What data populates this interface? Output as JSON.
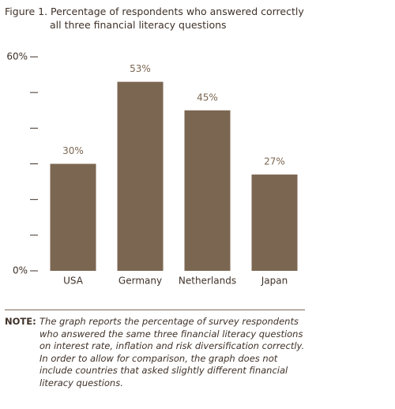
{
  "chart_data": {
    "type": "bar",
    "title": "Figure 1. Percentage of respondents who answered correctly all three financial literacy questions",
    "categories": [
      "USA",
      "Germany",
      "Netherlands",
      "Japan"
    ],
    "values": [
      30,
      53,
      45,
      27
    ],
    "value_labels": [
      "30%",
      "53%",
      "45%",
      "27%"
    ],
    "color": "#7b6651",
    "ylim": [
      0,
      60
    ],
    "yticks": [
      {
        "value": 0,
        "label": "0%"
      },
      {
        "value": 60,
        "label": "60%"
      }
    ],
    "yminor_ticks": [
      10,
      20,
      30,
      40,
      50
    ],
    "note": {
      "label": "NOTE:",
      "text": "The graph reports the percentage of survey respondents who answered the same three financial literacy questions on interest rate, inflation and risk diversification correctly. In order to allow for comparison, the graph does not include countries that asked slightly different financial literacy questions."
    }
  }
}
